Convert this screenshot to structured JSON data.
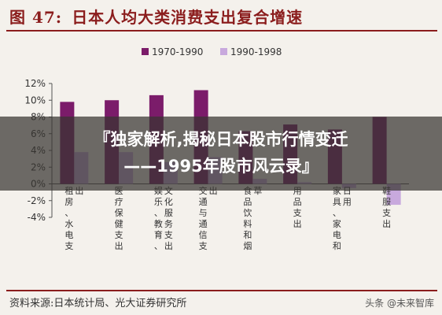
{
  "header": {
    "figure_number": "图 47:",
    "title": "日本人均大类消费支出复合增速"
  },
  "footer": {
    "source": "资料来源:日本统计局、光大证券研究所",
    "watermark": "头条 @未来智库"
  },
  "overlay": {
    "line1": "『独家解析,揭秘日本股市行情变迁",
    "line2": "——1995年股市风云录』"
  },
  "colors": {
    "series1": "#7b1c6a",
    "series2": "#c8a9dd",
    "accent": "#8b1d1d"
  },
  "chart_data": {
    "type": "bar",
    "categories": [
      "租房、水电支出",
      "医疗保健支出",
      "娱乐、教育、文化服务支出",
      "交通与通信支出",
      "食品饮料和烟草",
      "用品支出",
      "家具、家电和日用",
      "鞋服支出"
    ],
    "category_lines": [
      [
        "租",
        "房",
        "、",
        "水",
        "电",
        "支",
        "出"
      ],
      [
        "医",
        "疗",
        "保",
        "健",
        "支",
        "出"
      ],
      [
        "娱",
        "乐",
        "、",
        "教",
        "育",
        "、",
        "文",
        "化",
        "服",
        "务",
        "支",
        "出"
      ],
      [
        "交",
        "通",
        "与",
        "通",
        "信",
        "支",
        "出"
      ],
      [
        "食",
        "品",
        "饮",
        "料",
        "和",
        "烟",
        "草"
      ],
      [
        "用",
        "品",
        "支",
        "出"
      ],
      [
        "家",
        "具",
        "、",
        "家",
        "电",
        "和",
        "日",
        "用"
      ],
      [
        "鞋",
        "服",
        "支",
        "出"
      ]
    ],
    "series": [
      {
        "name": "1970-1990",
        "values": [
          9.8,
          10.0,
          10.6,
          11.2,
          6.3,
          7.1,
          6.5,
          8.0
        ]
      },
      {
        "name": "1990-1998",
        "values": [
          3.8,
          3.8,
          2.6,
          3.2,
          0.6,
          0.2,
          -0.5,
          -2.5
        ]
      }
    ],
    "ylim": [
      -4,
      12
    ],
    "yticks": [
      -4,
      -2,
      0,
      2,
      4,
      6,
      8,
      10,
      12
    ],
    "ytick_labels": [
      "-4%",
      "-2%",
      "0%",
      "2%",
      "4%",
      "6%",
      "8%",
      "10%",
      "12%"
    ],
    "legend": "top",
    "grid": false
  }
}
